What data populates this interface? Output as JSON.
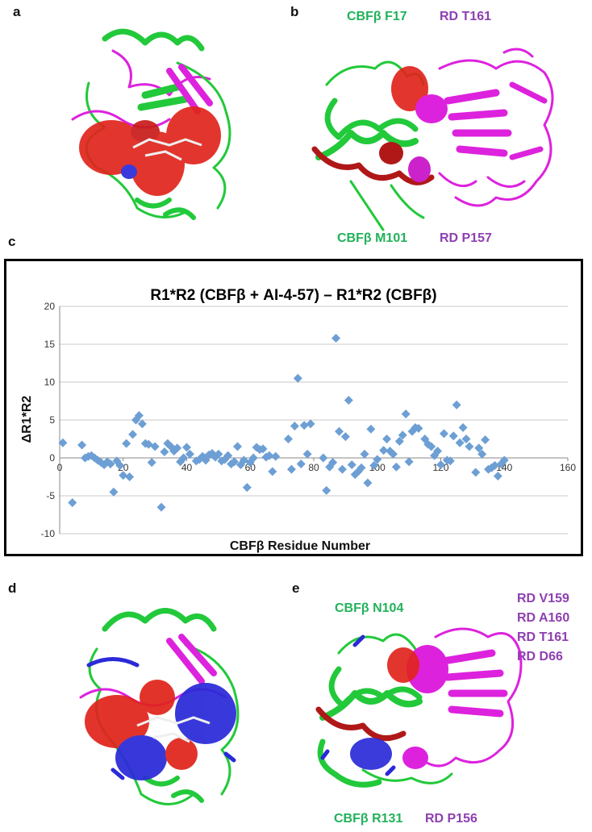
{
  "panels": {
    "a": {
      "letter": "a"
    },
    "b": {
      "letter": "b",
      "labels": {
        "cbfb_top": "CBFβ F17",
        "rd_top": "RD T161",
        "cbfb_bottom": "CBFβ M101",
        "rd_bottom": "RD P157"
      }
    },
    "c": {
      "letter": "c"
    },
    "d": {
      "letter": "d"
    },
    "e": {
      "letter": "e",
      "labels": {
        "cbfb_top": "CBFβ N104",
        "rd_list": [
          "RD V159",
          "RD A160",
          "RD T161",
          "RD D66"
        ],
        "cbfb_bottom": "CBFβ R131",
        "rd_bottom": "RD P156"
      }
    }
  },
  "colors": {
    "protein_green": "#22c93a",
    "rd_magenta": "#dd22dd",
    "surface_red": "#e0241c",
    "surface_blue": "#2a2ad8",
    "point_blue": "#6d9fd4",
    "label_green": "#22b25a",
    "label_purple": "#8e3fb0"
  },
  "chart_data": {
    "type": "scatter",
    "title": "R1*R2 (CBFβ + AI-4-57) – R1*R2 (CBFβ)",
    "xlabel": "CBFβ Residue Number",
    "ylabel": "ΔR1*R2",
    "xlim": [
      0,
      160
    ],
    "ylim": [
      -10,
      20
    ],
    "xticks": [
      0,
      20,
      40,
      60,
      80,
      100,
      120,
      140,
      160
    ],
    "yticks": [
      -10,
      -5,
      0,
      5,
      10,
      15,
      20
    ],
    "grid": "horizontal",
    "marker": "diamond",
    "points": [
      [
        1,
        2.0
      ],
      [
        4,
        -5.9
      ],
      [
        7,
        1.7
      ],
      [
        8,
        0.0
      ],
      [
        9,
        0.2
      ],
      [
        10,
        0.3
      ],
      [
        11,
        0.0
      ],
      [
        12,
        -0.3
      ],
      [
        13,
        -0.6
      ],
      [
        14,
        -0.9
      ],
      [
        15,
        -0.5
      ],
      [
        16,
        -0.8
      ],
      [
        17,
        -4.5
      ],
      [
        18,
        -0.4
      ],
      [
        19,
        -1.0
      ],
      [
        20,
        -2.3
      ],
      [
        21,
        1.9
      ],
      [
        22,
        -2.5
      ],
      [
        23,
        3.1
      ],
      [
        24,
        5.0
      ],
      [
        25,
        5.6
      ],
      [
        26,
        4.5
      ],
      [
        27,
        1.9
      ],
      [
        28,
        1.8
      ],
      [
        29,
        -0.6
      ],
      [
        30,
        1.5
      ],
      [
        32,
        -6.5
      ],
      [
        33,
        0.8
      ],
      [
        34,
        1.9
      ],
      [
        35,
        1.5
      ],
      [
        36,
        0.9
      ],
      [
        37,
        1.3
      ],
      [
        38,
        -0.5
      ],
      [
        39,
        0.0
      ],
      [
        40,
        1.4
      ],
      [
        41,
        0.5
      ],
      [
        43,
        -0.4
      ],
      [
        44,
        -0.2
      ],
      [
        45,
        0.2
      ],
      [
        46,
        -0.3
      ],
      [
        47,
        0.4
      ],
      [
        48,
        0.6
      ],
      [
        49,
        0.1
      ],
      [
        50,
        0.5
      ],
      [
        51,
        -0.4
      ],
      [
        52,
        -0.2
      ],
      [
        53,
        0.3
      ],
      [
        54,
        -0.8
      ],
      [
        55,
        -0.5
      ],
      [
        56,
        1.5
      ],
      [
        57,
        -0.9
      ],
      [
        58,
        -0.3
      ],
      [
        59,
        -3.9
      ],
      [
        60,
        -0.6
      ],
      [
        61,
        0.0
      ],
      [
        62,
        1.4
      ],
      [
        63,
        1.1
      ],
      [
        64,
        1.2
      ],
      [
        65,
        0.1
      ],
      [
        66,
        0.3
      ],
      [
        67,
        -1.8
      ],
      [
        68,
        0.2
      ],
      [
        72,
        2.5
      ],
      [
        73,
        -1.5
      ],
      [
        74,
        4.2
      ],
      [
        75,
        10.5
      ],
      [
        76,
        -0.8
      ],
      [
        77,
        4.3
      ],
      [
        78,
        0.5
      ],
      [
        79,
        4.5
      ],
      [
        83,
        0.0
      ],
      [
        84,
        -4.3
      ],
      [
        85,
        -1.2
      ],
      [
        86,
        -0.6
      ],
      [
        87,
        15.8
      ],
      [
        88,
        3.5
      ],
      [
        89,
        -1.5
      ],
      [
        90,
        2.8
      ],
      [
        91,
        7.6
      ],
      [
        92,
        -0.9
      ],
      [
        93,
        -2.2
      ],
      [
        94,
        -1.8
      ],
      [
        95,
        -1.3
      ],
      [
        96,
        0.5
      ],
      [
        97,
        -3.3
      ],
      [
        98,
        3.8
      ],
      [
        99,
        -1.0
      ],
      [
        100,
        -0.2
      ],
      [
        102,
        1.0
      ],
      [
        103,
        2.5
      ],
      [
        104,
        0.9
      ],
      [
        105,
        0.5
      ],
      [
        106,
        -1.2
      ],
      [
        107,
        2.2
      ],
      [
        108,
        3.0
      ],
      [
        109,
        5.8
      ],
      [
        110,
        -0.5
      ],
      [
        111,
        3.5
      ],
      [
        112,
        4.0
      ],
      [
        113,
        3.9
      ],
      [
        115,
        2.5
      ],
      [
        116,
        1.8
      ],
      [
        117,
        1.5
      ],
      [
        118,
        0.3
      ],
      [
        119,
        0.9
      ],
      [
        120,
        -0.9
      ],
      [
        121,
        3.2
      ],
      [
        122,
        -0.3
      ],
      [
        123,
        -0.4
      ],
      [
        124,
        2.9
      ],
      [
        125,
        7.0
      ],
      [
        126,
        2.0
      ],
      [
        127,
        4.0
      ],
      [
        128,
        2.5
      ],
      [
        129,
        1.5
      ],
      [
        131,
        -1.9
      ],
      [
        132,
        1.3
      ],
      [
        133,
        0.5
      ],
      [
        134,
        2.4
      ],
      [
        135,
        -1.5
      ],
      [
        136,
        -1.3
      ],
      [
        137,
        -1.0
      ],
      [
        138,
        -2.4
      ],
      [
        139,
        -0.8
      ],
      [
        140,
        -0.3
      ]
    ]
  }
}
